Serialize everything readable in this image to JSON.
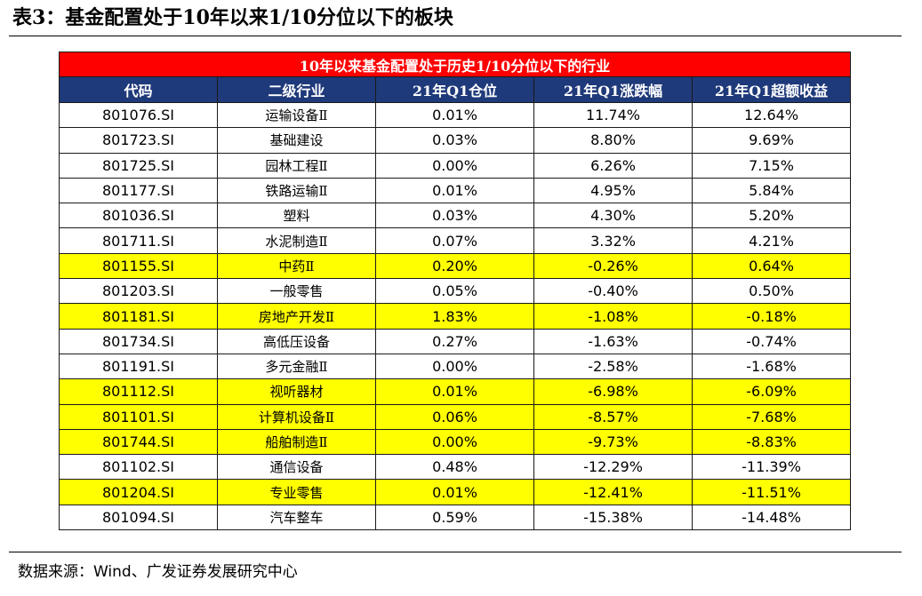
{
  "heading": "表3：基金配置处于10年以来1/10分位以下的板块",
  "table": {
    "banner": "10年以来基金配置处于历史1/10分位以下的行业",
    "columns": [
      "代码",
      "二级行业",
      "21年Q1仓位",
      "21年Q1涨跌幅",
      "21年Q1超额收益"
    ],
    "highlight_color": "#ffff00",
    "rows": [
      {
        "code": "801076.SI",
        "industry": "运输设备Ⅱ",
        "position": "0.01%",
        "change": "11.74%",
        "excess": "12.64%",
        "highlighted": false
      },
      {
        "code": "801723.SI",
        "industry": "基础建设",
        "position": "0.03%",
        "change": "8.80%",
        "excess": "9.69%",
        "highlighted": false
      },
      {
        "code": "801725.SI",
        "industry": "园林工程Ⅱ",
        "position": "0.00%",
        "change": "6.26%",
        "excess": "7.15%",
        "highlighted": false
      },
      {
        "code": "801177.SI",
        "industry": "铁路运输Ⅱ",
        "position": "0.01%",
        "change": "4.95%",
        "excess": "5.84%",
        "highlighted": false
      },
      {
        "code": "801036.SI",
        "industry": "塑料",
        "position": "0.03%",
        "change": "4.30%",
        "excess": "5.20%",
        "highlighted": false
      },
      {
        "code": "801711.SI",
        "industry": "水泥制造Ⅱ",
        "position": "0.07%",
        "change": "3.32%",
        "excess": "4.21%",
        "highlighted": false
      },
      {
        "code": "801155.SI",
        "industry": "中药Ⅱ",
        "position": "0.20%",
        "change": "-0.26%",
        "excess": "0.64%",
        "highlighted": true
      },
      {
        "code": "801203.SI",
        "industry": "一般零售",
        "position": "0.05%",
        "change": "-0.40%",
        "excess": "0.50%",
        "highlighted": false
      },
      {
        "code": "801181.SI",
        "industry": "房地产开发Ⅱ",
        "position": "1.83%",
        "change": "-1.08%",
        "excess": "-0.18%",
        "highlighted": true
      },
      {
        "code": "801734.SI",
        "industry": "高低压设备",
        "position": "0.27%",
        "change": "-1.63%",
        "excess": "-0.74%",
        "highlighted": false
      },
      {
        "code": "801191.SI",
        "industry": "多元金融Ⅱ",
        "position": "0.00%",
        "change": "-2.58%",
        "excess": "-1.68%",
        "highlighted": false
      },
      {
        "code": "801112.SI",
        "industry": "视听器材",
        "position": "0.01%",
        "change": "-6.98%",
        "excess": "-6.09%",
        "highlighted": true
      },
      {
        "code": "801101.SI",
        "industry": "计算机设备Ⅱ",
        "position": "0.06%",
        "change": "-8.57%",
        "excess": "-7.68%",
        "highlighted": true
      },
      {
        "code": "801744.SI",
        "industry": "船舶制造Ⅱ",
        "position": "0.00%",
        "change": "-9.73%",
        "excess": "-8.83%",
        "highlighted": true
      },
      {
        "code": "801102.SI",
        "industry": "通信设备",
        "position": "0.48%",
        "change": "-12.29%",
        "excess": "-11.39%",
        "highlighted": false
      },
      {
        "code": "801204.SI",
        "industry": "专业零售",
        "position": "0.01%",
        "change": "-12.41%",
        "excess": "-11.51%",
        "highlighted": true
      },
      {
        "code": "801094.SI",
        "industry": "汽车整车",
        "position": "0.59%",
        "change": "-15.38%",
        "excess": "-14.48%",
        "highlighted": false
      }
    ]
  },
  "source": "数据来源：Wind、广发证券发展研究中心"
}
